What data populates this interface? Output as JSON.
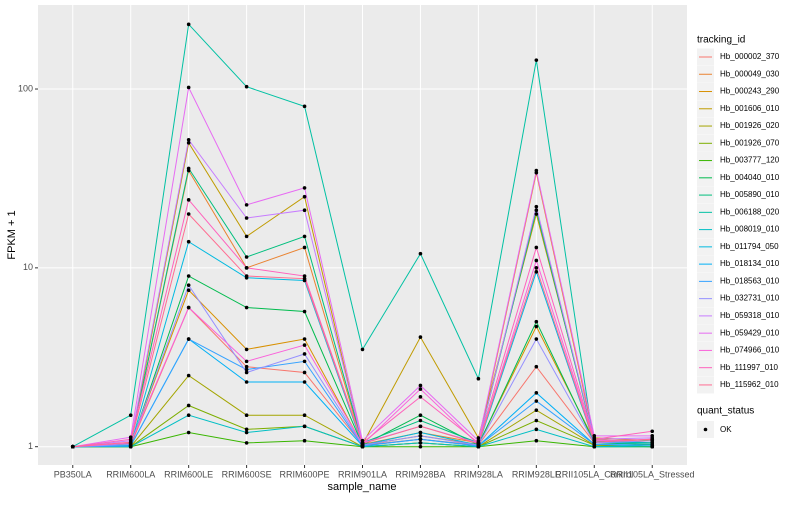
{
  "chart_data": {
    "type": "line",
    "log_y": true,
    "grid": true,
    "x_label": "sample_name",
    "y_label": "FPKM + 1",
    "legend_title": "tracking_id",
    "legend2_title": "quant_status",
    "legend2_label": "OK",
    "categories": [
      "PB350LA",
      "RRIM600LA",
      "RRIM600LE",
      "RRIM600SE",
      "RRIM600PE",
      "RRIM901LA",
      "RRIM928BA",
      "RRIM928LA",
      "RRIM928LE",
      "RRII105LA_Control",
      "RRII105LA_Stressed"
    ],
    "ylim": [
      0.79,
      295
    ],
    "yticks": [
      1,
      10,
      100
    ],
    "series": [
      {
        "name": "Hb_000002_370",
        "color": "#F8766D",
        "values": [
          1,
          1.02,
          6,
          2.8,
          2.6,
          1.02,
          1.1,
          1.02,
          2.8,
          1.05,
          1.1
        ]
      },
      {
        "name": "Hb_000049_030",
        "color": "#EA8331",
        "values": [
          1,
          1.05,
          35,
          10,
          13,
          1.03,
          1.2,
          1.05,
          34,
          1.1,
          1.05
        ]
      },
      {
        "name": "Hb_000243_290",
        "color": "#D89000",
        "values": [
          1,
          1.03,
          7.5,
          3.5,
          4,
          1.02,
          1.15,
          1.03,
          4.7,
          1.08,
          1.05
        ]
      },
      {
        "name": "Hb_001606_010",
        "color": "#C09B00",
        "values": [
          1,
          1.04,
          50,
          15,
          25,
          1.03,
          4.1,
          1.12,
          20,
          1.12,
          1.08
        ]
      },
      {
        "name": "Hb_001926_020",
        "color": "#A3A500",
        "values": [
          1,
          1,
          2.5,
          1.5,
          1.5,
          1,
          1.05,
          1,
          1.6,
          1.02,
          1
        ]
      },
      {
        "name": "Hb_001926_070",
        "color": "#7CAE00",
        "values": [
          1,
          1,
          1.7,
          1.25,
          1.3,
          1,
          1.05,
          1,
          1.4,
          1.02,
          1
        ]
      },
      {
        "name": "Hb_003777_120",
        "color": "#39B600",
        "values": [
          1,
          1,
          1.2,
          1.05,
          1.08,
          1,
          1,
          1,
          1.08,
          1,
          1
        ]
      },
      {
        "name": "Hb_004040_010",
        "color": "#00BB4E",
        "values": [
          1,
          1.02,
          9,
          6,
          5.7,
          1.02,
          1.5,
          1.02,
          5,
          1.05,
          1.03
        ]
      },
      {
        "name": "Hb_005890_010",
        "color": "#00BF7D",
        "values": [
          1,
          1.05,
          36,
          11.5,
          15,
          1.05,
          1.4,
          1.05,
          21,
          1.08,
          1.05
        ]
      },
      {
        "name": "Hb_006188_020",
        "color": "#00C1A3",
        "values": [
          1,
          1.5,
          230,
          103,
          80,
          3.5,
          12,
          2.4,
          145,
          1,
          1
        ]
      },
      {
        "name": "Hb_008019_010",
        "color": "#00BFC4",
        "values": [
          1,
          1,
          1.5,
          1.2,
          1.3,
          1,
          1.05,
          1,
          1.25,
          1,
          1.02
        ]
      },
      {
        "name": "Hb_011794_050",
        "color": "#00BAE0",
        "values": [
          1,
          1.02,
          14,
          8.8,
          8.5,
          1.02,
          1.2,
          1.02,
          9.5,
          1.05,
          1.05
        ]
      },
      {
        "name": "Hb_018134_010",
        "color": "#00B0F6",
        "values": [
          1,
          1.01,
          4,
          2.3,
          2.3,
          1.01,
          1.1,
          1.01,
          2,
          1.03,
          1.02
        ]
      },
      {
        "name": "Hb_018563_010",
        "color": "#35A2FF",
        "values": [
          1,
          1.01,
          4,
          2.7,
          3,
          1.01,
          1.1,
          1.01,
          1.8,
          1.03,
          1.02
        ]
      },
      {
        "name": "Hb_032731_010",
        "color": "#9590FF",
        "values": [
          1,
          1.03,
          8,
          2.6,
          3.3,
          1.02,
          1.15,
          1.02,
          4,
          1.05,
          1.08
        ]
      },
      {
        "name": "Hb_059318_010",
        "color": "#C77CFF",
        "values": [
          1,
          1.08,
          52,
          19,
          21,
          1.05,
          1.3,
          1.05,
          22,
          1.1,
          1.12
        ]
      },
      {
        "name": "Hb_059429_010",
        "color": "#E76BF3",
        "values": [
          1,
          1.13,
          102,
          22.5,
          28,
          1.08,
          2.2,
          1.08,
          35,
          1.15,
          1.15
        ]
      },
      {
        "name": "Hb_074966_010",
        "color": "#FA62DB",
        "values": [
          1,
          1.05,
          6,
          3,
          3.7,
          1.03,
          2.1,
          1.03,
          11,
          1.08,
          1.1
        ]
      },
      {
        "name": "Hb_111997_010",
        "color": "#FF62BC",
        "values": [
          1,
          1.1,
          24,
          10,
          9,
          1.05,
          1.9,
          1.05,
          13,
          1.1,
          1.22
        ]
      },
      {
        "name": "Hb_115962_010",
        "color": "#FF6C91",
        "values": [
          1,
          1.06,
          20,
          9,
          8.7,
          1.04,
          1.3,
          1.04,
          10,
          1.06,
          1.1
        ]
      }
    ]
  }
}
